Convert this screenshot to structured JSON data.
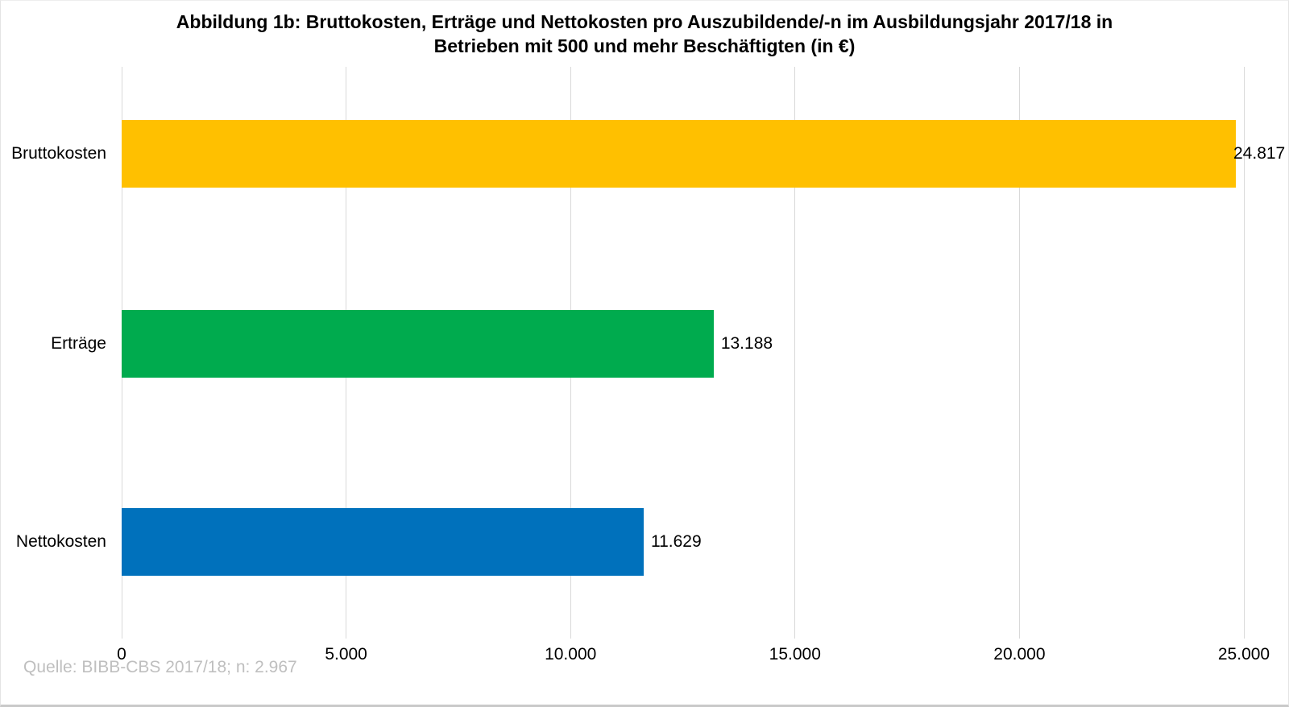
{
  "title": {
    "line1": "Abbildung 1b: Bruttokosten, Erträge und Nettokosten pro Auszubildende/-n im Ausbildungsjahr 2017/18 in",
    "line2": "Betrieben mit 500 und mehr Beschäftigten (in €)"
  },
  "source_note": "Quelle: BIBB-CBS 2017/18; n: 2.967",
  "chart_data": {
    "type": "bar",
    "orientation": "horizontal",
    "title": "Abbildung 1b: Bruttokosten, Erträge und Nettokosten pro Auszubildende/-n im Ausbildungsjahr 2017/18 in Betrieben mit 500 und mehr Beschäftigten (in €)",
    "categories": [
      "Bruttokosten",
      "Erträge",
      "Nettokosten"
    ],
    "values": [
      24817,
      13188,
      11629
    ],
    "value_labels": [
      "24.817",
      "13.188",
      "11.629"
    ],
    "bar_colors": [
      "#FFC000",
      "#00AB4E",
      "#0071BC"
    ],
    "xlabel": "",
    "ylabel": "",
    "xlim": [
      0,
      25000
    ],
    "x_ticks": [
      0,
      5000,
      10000,
      15000,
      20000,
      25000
    ],
    "x_tick_labels": [
      "0",
      "5.000",
      "10.000",
      "15.000",
      "20.000",
      "25.000"
    ],
    "grid": "vertical-gridlines",
    "gridline_color": "#d9d9d9",
    "legend": "none"
  }
}
